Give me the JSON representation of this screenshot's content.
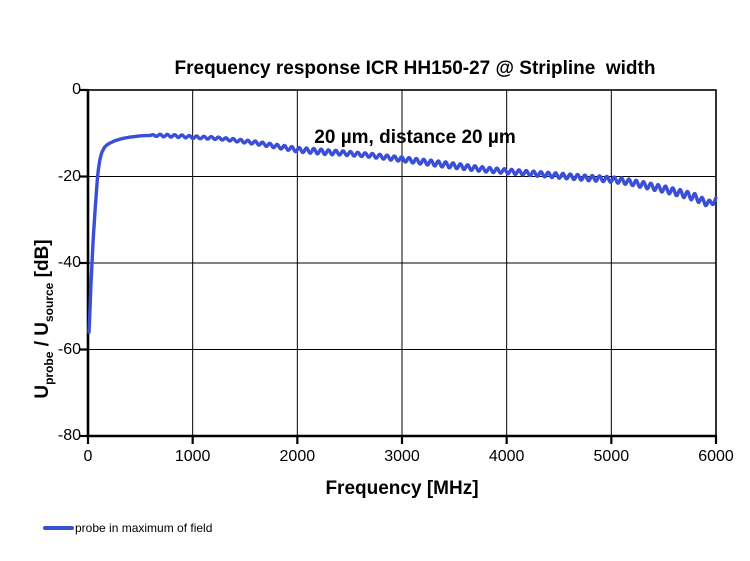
{
  "title": {
    "line1": "Frequency response ICR HH150-27 @ Stripline  width",
    "line2": "20 µm, distance 20 µm"
  },
  "legend": {
    "label": "probe in maximum of field",
    "line_color": "#3A4ED8"
  },
  "colors": {
    "background": "#FFFFFF",
    "axis": "#000000",
    "grid": "#000000",
    "text": "#000000",
    "series": "#3A4ED8"
  },
  "chart_data": {
    "type": "line",
    "title": "Frequency response ICR HH150-27 @ Stripline width 20 µm, distance 20 µm",
    "xlabel": "Frequency [MHz]",
    "ylabel": "Uprobe / Usource [dB]",
    "ylabel_parts": [
      {
        "text": "U",
        "sub": false
      },
      {
        "text": "probe",
        "sub": true
      },
      {
        "text": " / U",
        "sub": false
      },
      {
        "text": "source",
        "sub": true
      },
      {
        "text": " [dB]",
        "sub": false
      }
    ],
    "xlim": [
      0,
      6000
    ],
    "ylim": [
      -80,
      0
    ],
    "x_ticks": [
      0,
      1000,
      2000,
      3000,
      4000,
      5000,
      6000
    ],
    "y_ticks": [
      0,
      -20,
      -40,
      -60,
      -80
    ],
    "x_gridlines": [
      1000,
      2000,
      3000,
      4000,
      5000
    ],
    "y_gridlines": [
      -20,
      -40,
      -60
    ],
    "grid": true,
    "legend_position": "bottom-left",
    "series": [
      {
        "name": "probe in maximum of field",
        "color": "#3A4ED8",
        "stroke_width": 3.4,
        "points": [
          [
            10,
            -56
          ],
          [
            20,
            -50
          ],
          [
            30,
            -44
          ],
          [
            40,
            -39
          ],
          [
            50,
            -34.5
          ],
          [
            60,
            -30.5
          ],
          [
            70,
            -27
          ],
          [
            80,
            -23.5
          ],
          [
            90,
            -20.5
          ],
          [
            100,
            -18.2
          ],
          [
            110,
            -16.6
          ],
          [
            120,
            -15.4
          ],
          [
            130,
            -14.6
          ],
          [
            140,
            -14.0
          ],
          [
            160,
            -13.2
          ],
          [
            180,
            -12.7
          ],
          [
            200,
            -12.4
          ],
          [
            250,
            -11.8
          ],
          [
            300,
            -11.4
          ],
          [
            350,
            -11.1
          ],
          [
            400,
            -10.9
          ],
          [
            500,
            -10.6
          ],
          [
            600,
            -10.5
          ],
          [
            700,
            -10.5
          ],
          [
            800,
            -10.6
          ],
          [
            900,
            -10.7
          ],
          [
            1000,
            -10.9
          ],
          [
            1100,
            -11.0
          ],
          [
            1200,
            -11.1
          ],
          [
            1300,
            -11.3
          ],
          [
            1400,
            -11.6
          ],
          [
            1500,
            -11.9
          ],
          [
            1600,
            -12.2
          ],
          [
            1700,
            -12.6
          ],
          [
            1800,
            -13.0
          ],
          [
            1900,
            -13.4
          ],
          [
            2000,
            -13.8
          ],
          [
            2100,
            -14.0
          ],
          [
            2200,
            -14.2
          ],
          [
            2300,
            -14.4
          ],
          [
            2400,
            -14.5
          ],
          [
            2500,
            -14.7
          ],
          [
            2600,
            -14.9
          ],
          [
            2700,
            -15.1
          ],
          [
            2800,
            -15.4
          ],
          [
            2900,
            -15.7
          ],
          [
            3000,
            -16.0
          ],
          [
            3100,
            -16.3
          ],
          [
            3200,
            -16.6
          ],
          [
            3300,
            -16.9
          ],
          [
            3400,
            -17.2
          ],
          [
            3500,
            -17.5
          ],
          [
            3600,
            -17.8
          ],
          [
            3700,
            -18.1
          ],
          [
            3800,
            -18.4
          ],
          [
            3900,
            -18.6
          ],
          [
            4000,
            -18.8
          ],
          [
            4100,
            -19.0
          ],
          [
            4200,
            -19.2
          ],
          [
            4300,
            -19.4
          ],
          [
            4400,
            -19.6
          ],
          [
            4500,
            -19.8
          ],
          [
            4600,
            -20.0
          ],
          [
            4700,
            -20.2
          ],
          [
            4800,
            -20.4
          ],
          [
            4900,
            -20.5
          ],
          [
            5000,
            -20.7
          ],
          [
            5100,
            -21.0
          ],
          [
            5200,
            -21.4
          ],
          [
            5300,
            -21.9
          ],
          [
            5400,
            -22.4
          ],
          [
            5500,
            -22.9
          ],
          [
            5600,
            -23.5
          ],
          [
            5700,
            -24.1
          ],
          [
            5800,
            -24.8
          ],
          [
            5900,
            -26.0
          ],
          [
            5950,
            -26.2
          ],
          [
            6000,
            -25.3
          ]
        ],
        "ripple": {
          "period_mhz": 70,
          "start_mhz": 600,
          "amplitude_profile": [
            [
              0,
              0
            ],
            [
              550,
              0.05
            ],
            [
              700,
              0.3
            ],
            [
              1300,
              0.3
            ],
            [
              1800,
              0.45
            ],
            [
              2200,
              0.6
            ],
            [
              2600,
              0.45
            ],
            [
              3000,
              0.55
            ],
            [
              3400,
              0.65
            ],
            [
              3800,
              0.55
            ],
            [
              4200,
              0.55
            ],
            [
              4600,
              0.6
            ],
            [
              5000,
              0.65
            ],
            [
              5400,
              0.75
            ],
            [
              5800,
              0.85
            ],
            [
              6000,
              0.6
            ]
          ]
        }
      }
    ]
  }
}
